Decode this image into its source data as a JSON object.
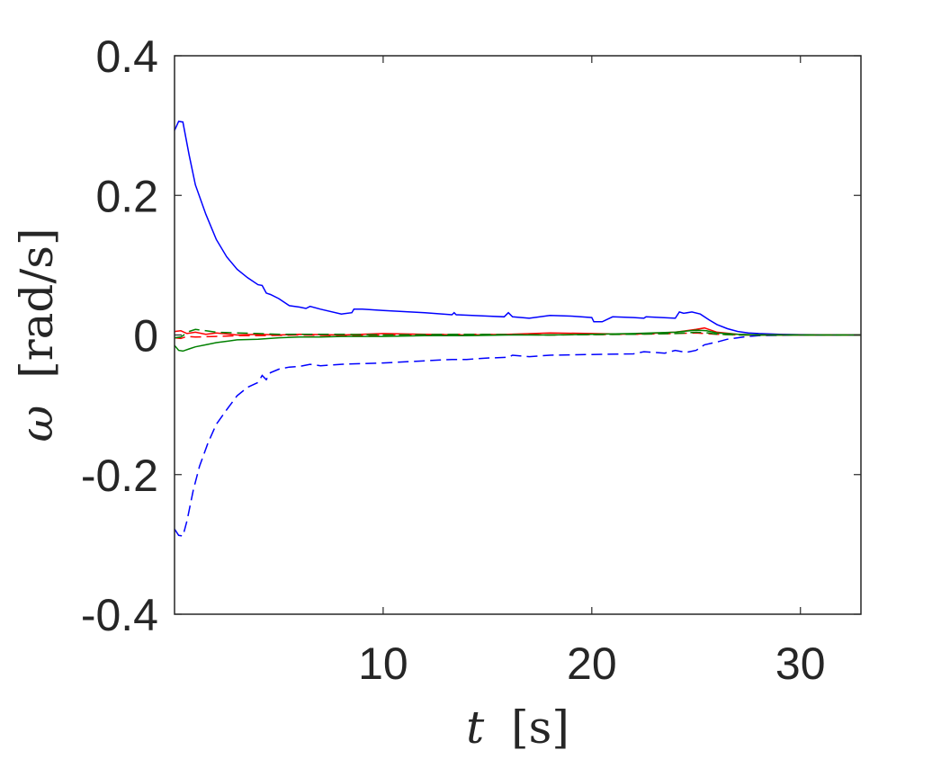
{
  "chart_data": {
    "type": "line",
    "xlabel_symbol": "t",
    "xlabel_unit": "[s]",
    "ylabel_symbol": "ω",
    "ylabel_unit": "[rad/s]",
    "xlim": [
      0,
      32.9
    ],
    "ylim": [
      -0.4,
      0.4
    ],
    "xticks": [
      10,
      20,
      30
    ],
    "xtick_labels": [
      "10",
      "20",
      "30"
    ],
    "yticks": [
      -0.4,
      -0.2,
      0,
      0.2,
      0.4
    ],
    "ytick_labels": [
      "-0.4",
      "-0.2",
      "0",
      "0.2",
      "0.4"
    ],
    "grid": false,
    "legend": "none",
    "series": [
      {
        "color": "#0000ff",
        "style": "solid",
        "x": [
          0,
          0.2,
          0.4,
          0.7,
          1.0,
          1.5,
          2.0,
          2.5,
          3.0,
          3.5,
          4.0,
          4.2,
          4.4,
          4.6,
          5.0,
          5.5,
          6.0,
          6.3,
          6.5,
          7.0,
          8.0,
          8.5,
          8.6,
          9.0,
          10.0,
          12.0,
          13.3,
          13.4,
          13.5,
          15.0,
          15.8,
          16.0,
          16.2,
          17.0,
          18.0,
          19.0,
          20.0,
          20.1,
          20.5,
          21.0,
          22.0,
          22.5,
          22.6,
          24.0,
          24.2,
          24.4,
          24.8,
          25.2,
          25.6,
          26.0,
          26.5,
          27.0,
          27.5,
          28.0,
          29.0,
          30.0,
          31.0,
          32.9
        ],
        "y": [
          0.293,
          0.306,
          0.305,
          0.258,
          0.215,
          0.173,
          0.137,
          0.112,
          0.094,
          0.082,
          0.072,
          0.071,
          0.06,
          0.058,
          0.052,
          0.042,
          0.04,
          0.038,
          0.041,
          0.037,
          0.03,
          0.032,
          0.037,
          0.037,
          0.035,
          0.032,
          0.029,
          0.032,
          0.029,
          0.027,
          0.026,
          0.032,
          0.026,
          0.024,
          0.028,
          0.027,
          0.025,
          0.019,
          0.019,
          0.026,
          0.025,
          0.024,
          0.026,
          0.024,
          0.033,
          0.031,
          0.033,
          0.03,
          0.022,
          0.015,
          0.009,
          0.005,
          0.003,
          0.002,
          0.001,
          0.0005,
          0.0003,
          0.0003
        ]
      },
      {
        "color": "#0000ff",
        "style": "dashed",
        "x": [
          0,
          0.2,
          0.4,
          0.6,
          0.9,
          1.2,
          1.6,
          2.0,
          2.5,
          3.0,
          3.5,
          4.0,
          4.2,
          4.4,
          4.6,
          5.0,
          5.5,
          6.0,
          6.5,
          7.0,
          8.0,
          9.0,
          10.0,
          12.0,
          13.3,
          14.0,
          15.0,
          16.0,
          16.2,
          17.0,
          18.0,
          20.0,
          22.0,
          22.5,
          23.5,
          24.0,
          24.5,
          25.0,
          25.4,
          26.0,
          26.5,
          27.0,
          27.5,
          28.0,
          29.0,
          30.0,
          32.9
        ],
        "y": [
          -0.278,
          -0.287,
          -0.288,
          -0.266,
          -0.222,
          -0.188,
          -0.155,
          -0.128,
          -0.107,
          -0.087,
          -0.075,
          -0.068,
          -0.058,
          -0.064,
          -0.054,
          -0.049,
          -0.046,
          -0.045,
          -0.042,
          -0.044,
          -0.042,
          -0.041,
          -0.04,
          -0.037,
          -0.035,
          -0.035,
          -0.033,
          -0.032,
          -0.029,
          -0.031,
          -0.029,
          -0.028,
          -0.027,
          -0.024,
          -0.026,
          -0.022,
          -0.025,
          -0.022,
          -0.014,
          -0.01,
          -0.006,
          -0.004,
          -0.002,
          -0.001,
          -0.0005,
          -0.0003,
          -0.0003
        ]
      },
      {
        "color": "#ff0000",
        "style": "solid",
        "x": [
          0,
          0.3,
          0.6,
          1.0,
          1.5,
          2.0,
          3.0,
          4.0,
          5.0,
          6.0,
          8.0,
          10.0,
          12.0,
          14.0,
          16.0,
          18.0,
          20.0,
          22.0,
          24.0,
          25.0,
          25.4,
          26.0,
          27.0,
          28.0,
          30.0,
          32.9
        ],
        "y": [
          0.005,
          0.006,
          0.002,
          0.004,
          0.001,
          0.003,
          0.0,
          0.001,
          0.0,
          0.001,
          0.0,
          0.002,
          0.001,
          0.0,
          0.001,
          0.003,
          0.002,
          0.001,
          0.004,
          0.008,
          0.01,
          0.004,
          0.001,
          0.0,
          0.0,
          0.0
        ]
      },
      {
        "color": "#ff0000",
        "style": "dashed",
        "x": [
          0,
          0.3,
          0.6,
          1.0,
          2.0,
          3.0,
          4.0,
          6.0,
          8.0,
          10.0,
          14.0,
          18.0,
          22.0,
          24.0,
          25.0,
          25.4,
          26.0,
          27.0,
          28.0,
          30.0,
          32.9
        ],
        "y": [
          -0.004,
          -0.005,
          -0.002,
          -0.003,
          -0.002,
          -0.001,
          -0.001,
          0.0,
          -0.001,
          0.0,
          0.001,
          0.0,
          0.001,
          0.002,
          0.003,
          0.002,
          0.001,
          0.0,
          0.0,
          0.0,
          0.0
        ]
      },
      {
        "color": "#008000",
        "style": "solid",
        "x": [
          0,
          0.2,
          0.4,
          0.7,
          1.0,
          1.5,
          2.0,
          2.5,
          3.0,
          4.0,
          5.0,
          6.0,
          7.0,
          8.0,
          10.0,
          12.0,
          14.0,
          16.0,
          18.0,
          20.0,
          22.0,
          24.0,
          25.0,
          25.5,
          26.0,
          27.0,
          28.0,
          30.0,
          32.9
        ],
        "y": [
          -0.015,
          -0.022,
          -0.023,
          -0.02,
          -0.017,
          -0.014,
          -0.011,
          -0.009,
          -0.007,
          -0.006,
          -0.004,
          -0.003,
          -0.003,
          -0.002,
          -0.002,
          -0.001,
          -0.001,
          0.0,
          0.0,
          0.001,
          0.002,
          0.004,
          0.007,
          0.006,
          0.003,
          0.001,
          0.0,
          0.0,
          0.0
        ]
      },
      {
        "color": "#008000",
        "style": "dashed",
        "x": [
          0,
          0.3,
          0.7,
          1.0,
          1.5,
          2.0,
          3.0,
          4.0,
          5.0,
          6.0,
          8.0,
          10.0,
          14.0,
          18.0,
          22.0,
          24.0,
          25.0,
          25.6,
          26.0,
          27.0,
          28.0,
          30.0,
          32.9
        ],
        "y": [
          -0.004,
          -0.003,
          0.005,
          0.008,
          0.006,
          0.004,
          0.003,
          0.002,
          0.001,
          0.001,
          0.001,
          0.0,
          0.001,
          0.0,
          0.001,
          0.002,
          0.004,
          0.003,
          0.001,
          0.0,
          0.0,
          0.0,
          0.0
        ]
      }
    ]
  }
}
